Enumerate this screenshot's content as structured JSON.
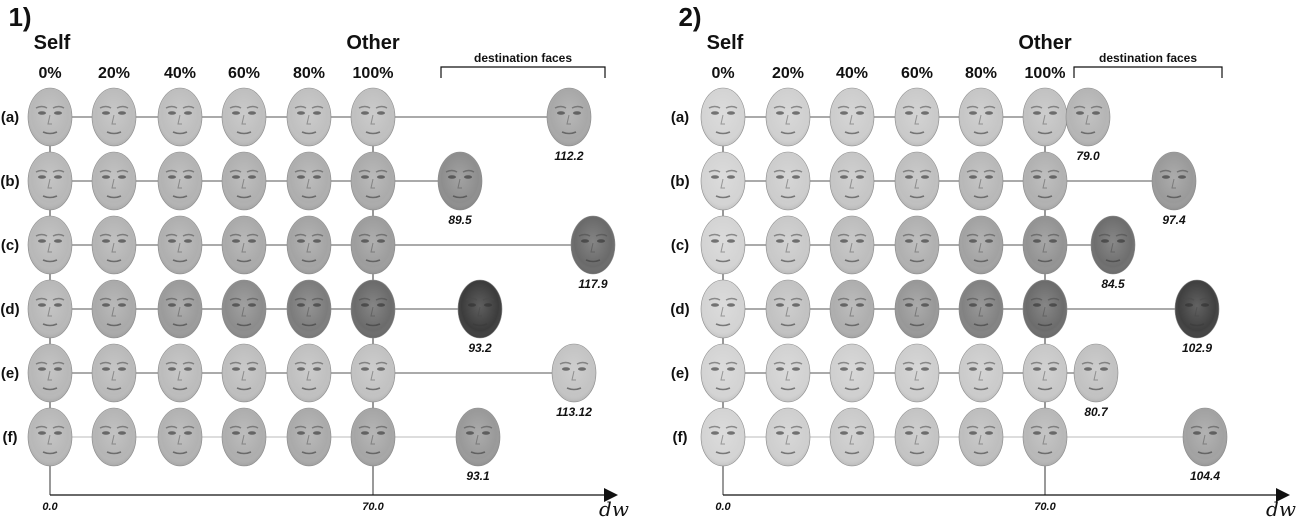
{
  "axis": {
    "label": "dw",
    "ticks": [
      "0.0",
      "70.0"
    ]
  },
  "headers": {
    "self": "Self",
    "other": "Other",
    "percents": [
      "0%",
      "20%",
      "40%",
      "60%",
      "80%",
      "100%"
    ],
    "destination": "destination faces"
  },
  "panels": [
    {
      "number": "1)",
      "rows": [
        {
          "label": "(a)",
          "distance": "112.2",
          "tones": [
            "#b8b8b8",
            "#bcbcbc",
            "#bebebe",
            "#bfbfbf",
            "#c0c0c0",
            "#c0c0c0"
          ],
          "dest_tone": "#a8a8a8"
        },
        {
          "label": "(b)",
          "distance": "89.5",
          "tones": [
            "#b8b8b8",
            "#b6b6b6",
            "#b3b3b3",
            "#b0b0b0",
            "#aeaeae",
            "#ababab"
          ],
          "dest_tone": "#8e8e8e"
        },
        {
          "label": "(c)",
          "distance": "117.9",
          "tones": [
            "#b8b8b8",
            "#b4b4b4",
            "#afafaf",
            "#aaaaaa",
            "#a4a4a4",
            "#9d9d9d"
          ],
          "dest_tone": "#6a6a6a"
        },
        {
          "label": "(d)",
          "distance": "93.2",
          "tones": [
            "#b8b8b8",
            "#aaaaaa",
            "#9b9b9b",
            "#8c8c8c",
            "#7c7c7c",
            "#6b6b6b"
          ],
          "dest_tone": "#3c3c3c"
        },
        {
          "label": "(e)",
          "distance": "113.12",
          "tones": [
            "#b8b8b8",
            "#bababa",
            "#bcbcbc",
            "#bebebe",
            "#c0c0c0",
            "#c2c2c2"
          ],
          "dest_tone": "#c4c4c4"
        },
        {
          "label": "(f)",
          "distance": "93.1",
          "tones": [
            "#b8b8b8",
            "#b5b5b5",
            "#b2b2b2",
            "#aeaeae",
            "#aaaaaa",
            "#a6a6a6"
          ],
          "dest_tone": "#999999"
        }
      ]
    },
    {
      "number": "2)",
      "rows": [
        {
          "label": "(a)",
          "distance": "79.0",
          "tones": [
            "#d4d4d4",
            "#d0d0d0",
            "#cdcdcd",
            "#cacaca",
            "#c6c6c6",
            "#c2c2c2"
          ],
          "dest_tone": "#b5b5b5"
        },
        {
          "label": "(b)",
          "distance": "97.4",
          "tones": [
            "#d4d4d4",
            "#cdcdcd",
            "#c6c6c6",
            "#bfbfbf",
            "#b8b8b8",
            "#b1b1b1"
          ],
          "dest_tone": "#9a9a9a"
        },
        {
          "label": "(c)",
          "distance": "84.5",
          "tones": [
            "#d4d4d4",
            "#c9c9c9",
            "#bdbdbd",
            "#b0b0b0",
            "#a2a2a2",
            "#939393"
          ],
          "dest_tone": "#6e6e6e"
        },
        {
          "label": "(d)",
          "distance": "102.9",
          "tones": [
            "#d4d4d4",
            "#c2c2c2",
            "#aeaeae",
            "#989898",
            "#828282",
            "#6c6c6c"
          ],
          "dest_tone": "#404040"
        },
        {
          "label": "(e)",
          "distance": "80.7",
          "tones": [
            "#d4d4d4",
            "#d2d2d2",
            "#d0d0d0",
            "#cecece",
            "#cbcbcb",
            "#c8c8c8"
          ],
          "dest_tone": "#c2c2c2"
        },
        {
          "label": "(f)",
          "distance": "104.4",
          "tones": [
            "#d4d4d4",
            "#cfcfcf",
            "#cacaca",
            "#c4c4c4",
            "#bebebe",
            "#b8b8b8"
          ],
          "dest_tone": "#a2a2a2"
        }
      ]
    }
  ]
}
